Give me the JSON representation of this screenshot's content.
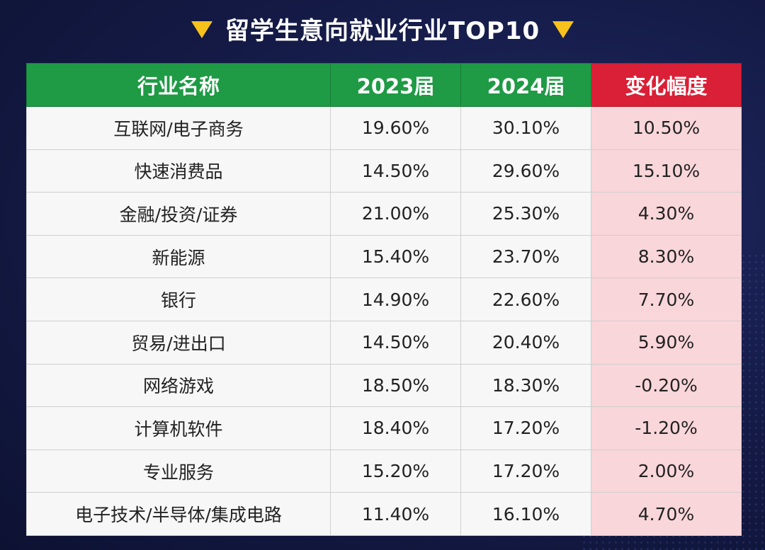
{
  "title": "留学生意向就业行业TOP10",
  "colors": {
    "header_green": "#1f9a45",
    "header_red": "#d92036",
    "change_col_bg": "#f9d6da",
    "arrow": "#f6c21b"
  },
  "chart_data": {
    "type": "table",
    "title": "留学生意向就业行业TOP10",
    "columns": [
      "行业名称",
      "2023届",
      "2024届",
      "变化幅度"
    ],
    "rows": [
      [
        "互联网/电子商务",
        "19.60%",
        "30.10%",
        "10.50%"
      ],
      [
        "快速消费品",
        "14.50%",
        "29.60%",
        "15.10%"
      ],
      [
        "金融/投资/证券",
        "21.00%",
        "25.30%",
        "4.30%"
      ],
      [
        "新能源",
        "15.40%",
        "23.70%",
        "8.30%"
      ],
      [
        "银行",
        "14.90%",
        "22.60%",
        "7.70%"
      ],
      [
        "贸易/进出口",
        "14.50%",
        "20.40%",
        "5.90%"
      ],
      [
        "网络游戏",
        "18.50%",
        "18.30%",
        "-0.20%"
      ],
      [
        "计算机软件",
        "18.40%",
        "17.20%",
        "-1.20%"
      ],
      [
        "专业服务",
        "15.20%",
        "17.20%",
        "2.00%"
      ],
      [
        "电子技术/半导体/集成电路",
        "11.40%",
        "16.10%",
        "4.70%"
      ]
    ]
  }
}
